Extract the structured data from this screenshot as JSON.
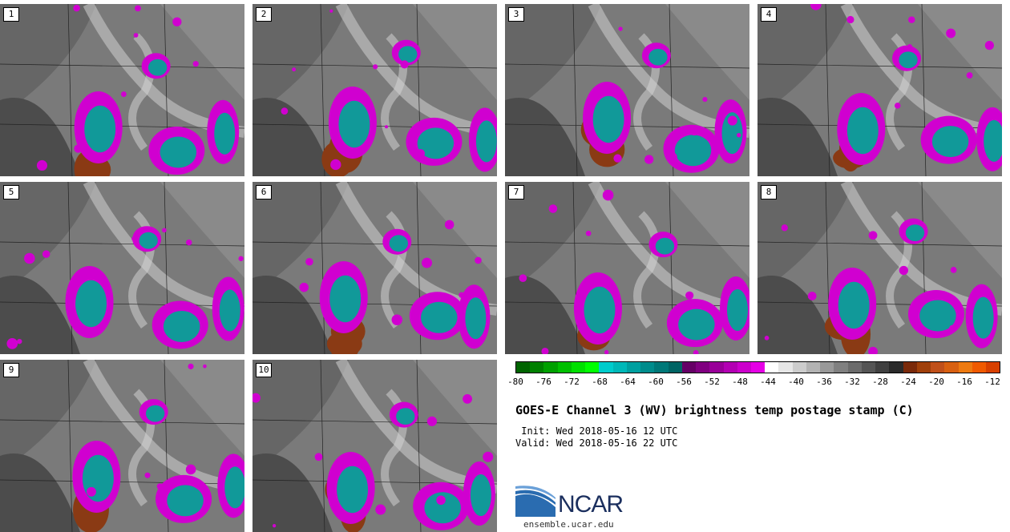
{
  "panels": [
    {
      "label": "1"
    },
    {
      "label": "2"
    },
    {
      "label": "3"
    },
    {
      "label": "4"
    },
    {
      "label": "5"
    },
    {
      "label": "6"
    },
    {
      "label": "7"
    },
    {
      "label": "8"
    },
    {
      "label": "9"
    },
    {
      "label": "10"
    }
  ],
  "colorbar": {
    "colors": [
      "#006400",
      "#008000",
      "#00a000",
      "#00c000",
      "#00e000",
      "#00ff00",
      "#00cccc",
      "#00b8b8",
      "#00a0a0",
      "#008c8c",
      "#007878",
      "#006464",
      "#660066",
      "#800080",
      "#990099",
      "#b300b3",
      "#cc00cc",
      "#e600e6",
      "#ffffff",
      "#e6e6e6",
      "#cccccc",
      "#b3b3b3",
      "#999999",
      "#808080",
      "#6b6b6b",
      "#555555",
      "#404040",
      "#2a2a2a",
      "#7a2a0a",
      "#a0400a",
      "#c0501a",
      "#d86010",
      "#ee7a10",
      "#f05a00",
      "#d84000"
    ],
    "tick_labels": [
      "-80",
      "-76",
      "-72",
      "-68",
      "-64",
      "-60",
      "-56",
      "-52",
      "-48",
      "-44",
      "-40",
      "-36",
      "-32",
      "-28",
      "-24",
      "-20",
      "-16",
      "-12"
    ]
  },
  "title": "GOES-E Channel 3 (WV) brightness temp postage stamp (C)",
  "init_line": " Init: Wed 2018-05-16 12 UTC",
  "valid_line": "Valid: Wed 2018-05-16 22 UTC",
  "logo_text": "NCAR",
  "url": "ensemble.ucar.edu"
}
